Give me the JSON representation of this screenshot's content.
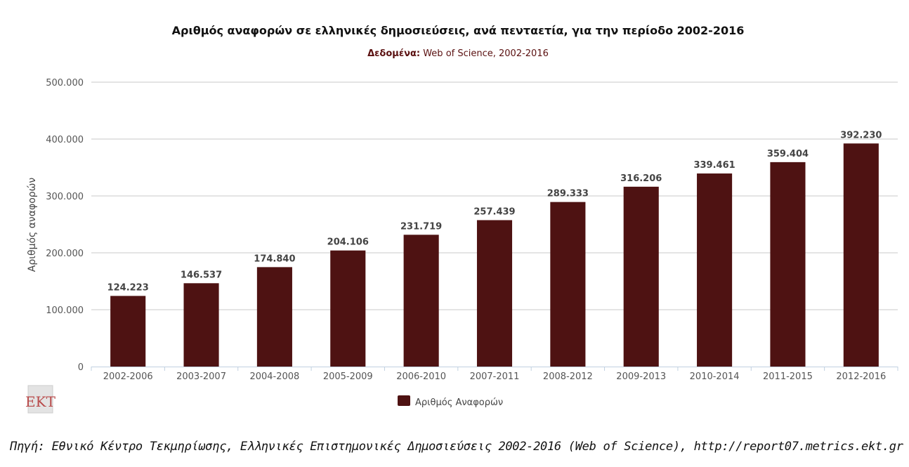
{
  "chart_data": {
    "type": "bar",
    "title": "Αριθμός αναφορών σε ελληνικές δημοσιεύσεις, ανά πενταετία, για την περίοδο 2002-2016",
    "subtitle_label": "Δεδομένα:",
    "subtitle_value": "Web of Science, 2002-2016",
    "ylabel": "Αριθμός αναφορών",
    "xlabel": "",
    "ylim": [
      0,
      500000
    ],
    "yticks": [
      0,
      100000,
      200000,
      300000,
      400000,
      500000
    ],
    "ytick_labels": [
      "0",
      "100.000",
      "200.000",
      "300.000",
      "400.000",
      "500.000"
    ],
    "categories": [
      "2002-2006",
      "2003-2007",
      "2004-2008",
      "2005-2009",
      "2006-2010",
      "2007-2011",
      "2008-2012",
      "2009-2013",
      "2010-2014",
      "2011-2015",
      "2012-2016"
    ],
    "series": [
      {
        "name": "Αριθμός Αναφορών",
        "color": "#4e1212",
        "values": [
          124223,
          146537,
          174840,
          204106,
          231719,
          257439,
          289333,
          316206,
          339461,
          359404,
          392230
        ],
        "labels": [
          "124.223",
          "146.537",
          "174.840",
          "204.106",
          "231.719",
          "257.439",
          "289.333",
          "316.206",
          "339.461",
          "359.404",
          "392.230"
        ]
      }
    ],
    "grid": true,
    "legend_position": "bottom-center"
  },
  "logo_text": "EKT",
  "source_text": "Πηγή: Εθνικό Κέντρο Τεκμηρίωσης, Ελληνικές Επιστημονικές Δημοσιεύσεις 2002-2016 (Web of Science), http://report07.metrics.ekt.gr"
}
